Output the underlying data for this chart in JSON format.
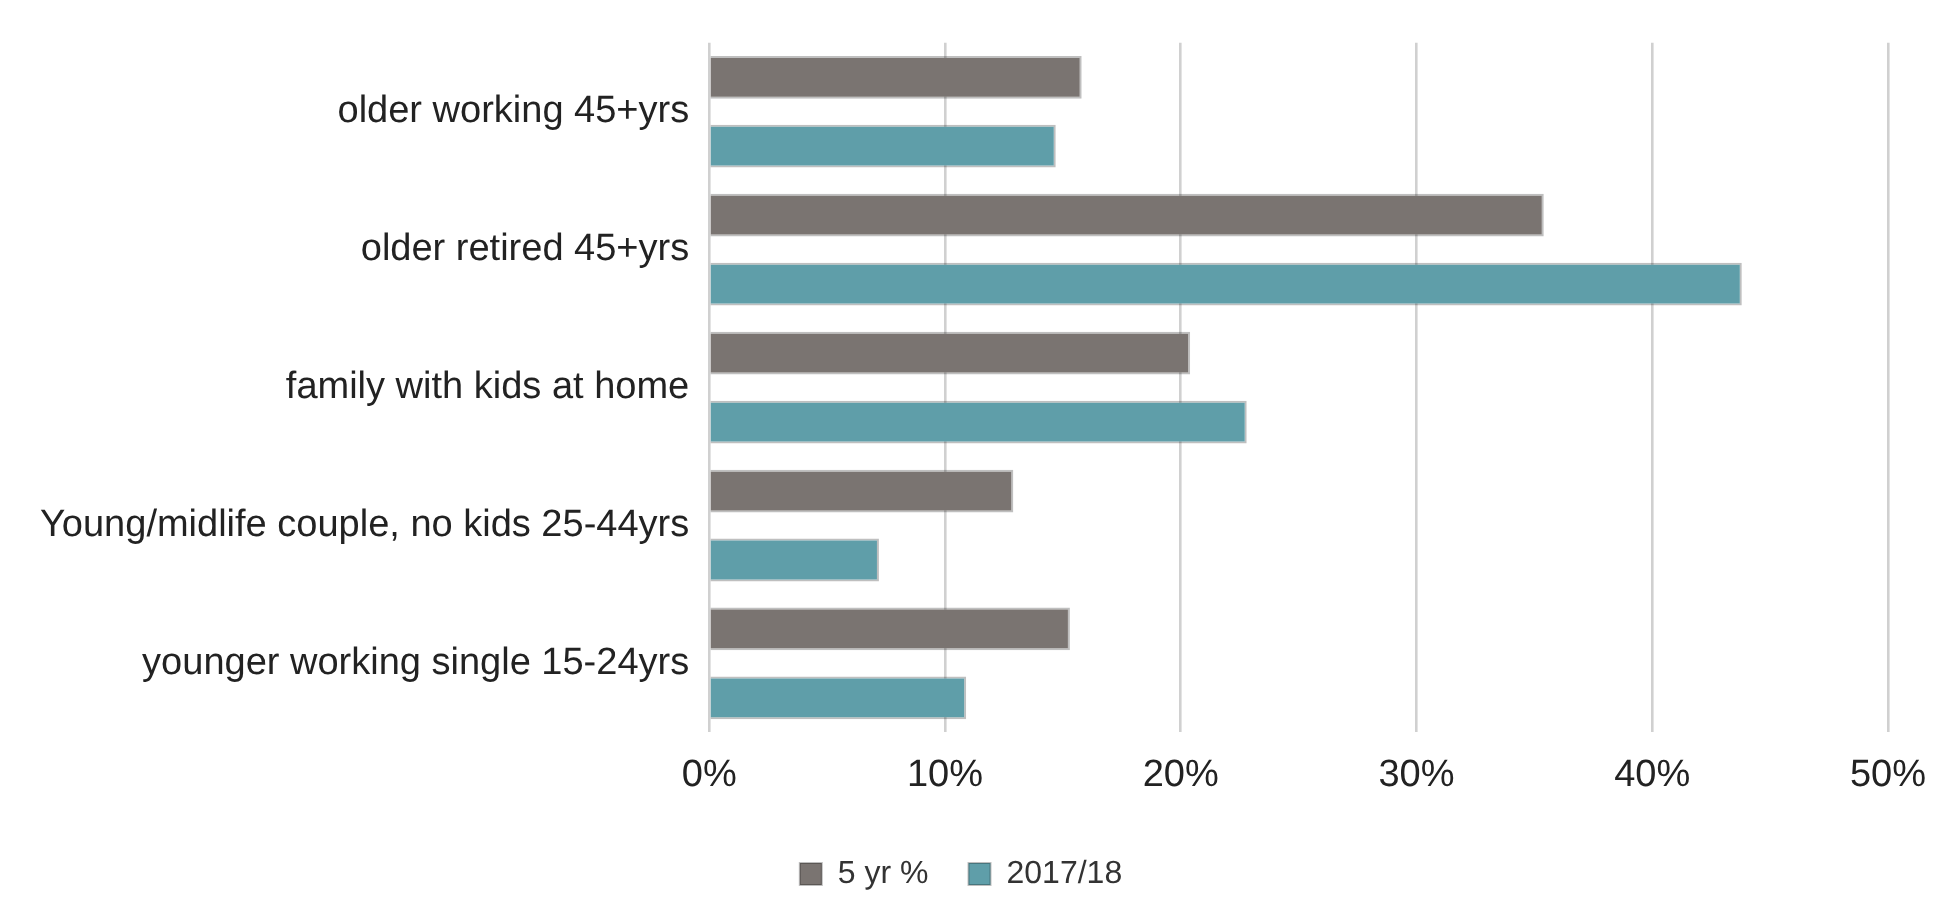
{
  "chart_data": {
    "type": "bar",
    "orientation": "horizontal",
    "categories": [
      "older working 45+yrs",
      "older retired 45+yrs",
      "family with kids at home",
      "Young/midlife couple, no kids 25-44yrs",
      "younger working single 15-24yrs"
    ],
    "series": [
      {
        "name": "5 yr %",
        "color": "#7a7471",
        "values": [
          15.8,
          35.4,
          20.4,
          12.9,
          15.3
        ]
      },
      {
        "name": "2017/18",
        "color": "#5f9ea9",
        "values": [
          14.7,
          43.8,
          22.8,
          7.2,
          10.9
        ]
      }
    ],
    "xlim": [
      0,
      50
    ],
    "xticks": [
      {
        "value": 0,
        "label": "0%"
      },
      {
        "value": 10,
        "label": "10%"
      },
      {
        "value": 20,
        "label": "20%"
      },
      {
        "value": 30,
        "label": "30%"
      },
      {
        "value": 40,
        "label": "40%"
      },
      {
        "value": 50,
        "label": "50%"
      }
    ],
    "grid": "x",
    "legend": "bottom"
  }
}
